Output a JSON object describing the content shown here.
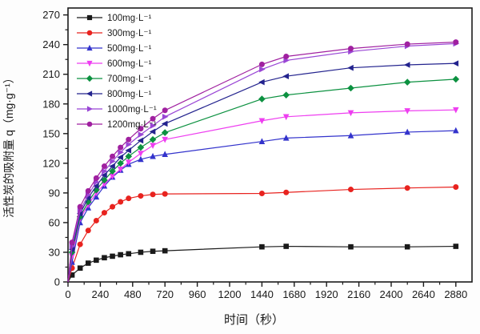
{
  "page": {
    "background": "#fdfdfd",
    "axis_color": "#1a1a1a"
  },
  "chart_data": {
    "type": "line",
    "title": "",
    "xlabel": "时间（秒）",
    "ylabel": "活性炭的吸附量 q（mg·g⁻¹）",
    "xlim": [
      0,
      3000
    ],
    "ylim": [
      0,
      277
    ],
    "x_ticks_major": [
      0,
      240,
      480,
      720,
      960,
      1200,
      1440,
      1680,
      1920,
      2160,
      2400,
      2640,
      2880
    ],
    "x_tick_minor_step": 120,
    "y_ticks_major": [
      0,
      30,
      60,
      90,
      120,
      150,
      180,
      210,
      240,
      270
    ],
    "y_tick_minor_step": 15,
    "grid": false,
    "frame": true,
    "legend_position": "top-left",
    "x": [
      30,
      90,
      150,
      210,
      270,
      330,
      390,
      450,
      540,
      630,
      720,
      1440,
      1620,
      2100,
      2520,
      2880
    ],
    "series": [
      {
        "name": "100mg·L⁻¹",
        "color": "#1a1a1a",
        "marker": "square",
        "values": [
          7,
          14,
          19,
          22,
          24.5,
          26,
          27.5,
          28.5,
          30,
          31,
          31.5,
          35.5,
          36,
          35.5,
          35.5,
          36
        ]
      },
      {
        "name": "300mg·L⁻¹",
        "color": "#e8231f",
        "marker": "circle",
        "values": [
          14,
          38,
          52,
          62,
          70,
          76,
          81,
          84.5,
          87,
          88.5,
          89,
          89.5,
          90.5,
          93.5,
          95,
          96
        ]
      },
      {
        "name": "500mg·L⁻¹",
        "color": "#3333cc",
        "marker": "triangle-up",
        "values": [
          20,
          60,
          75,
          86,
          97,
          106,
          113,
          119,
          124,
          127,
          129,
          142,
          145.5,
          148,
          151.5,
          153
        ]
      },
      {
        "name": "600mg·L⁻¹",
        "color": "#ee3ef0",
        "marker": "triangle-down",
        "values": [
          26,
          64,
          78,
          90,
          99,
          107,
          114,
          121,
          130,
          138,
          144,
          163,
          167,
          171,
          173,
          174
        ]
      },
      {
        "name": "700mg·L⁻¹",
        "color": "#0c9140",
        "marker": "diamond",
        "values": [
          30,
          66,
          81,
          93,
          103,
          112,
          120,
          127,
          136,
          144,
          151,
          185,
          189,
          196,
          202,
          205
        ]
      },
      {
        "name": "800mg·L⁻¹",
        "color": "#23238e",
        "marker": "triangle-left",
        "values": [
          33,
          69,
          85,
          97,
          108,
          117,
          126,
          133,
          143,
          152,
          160,
          202,
          208,
          216.5,
          219.5,
          221
        ]
      },
      {
        "name": "1000mg·L⁻¹",
        "color": "#9945d5",
        "marker": "triangle-right",
        "values": [
          36,
          72,
          88,
          101,
          112,
          122,
          131,
          139,
          149,
          158,
          167,
          215,
          224,
          233,
          238.5,
          241
        ]
      },
      {
        "name": "1200mg·L⁻¹",
        "color": "#a020a0",
        "marker": "circle",
        "values": [
          40,
          76,
          92,
          105,
          117,
          127,
          136,
          144,
          155,
          165,
          173.5,
          220,
          228,
          236,
          240.5,
          242.5
        ]
      }
    ]
  }
}
